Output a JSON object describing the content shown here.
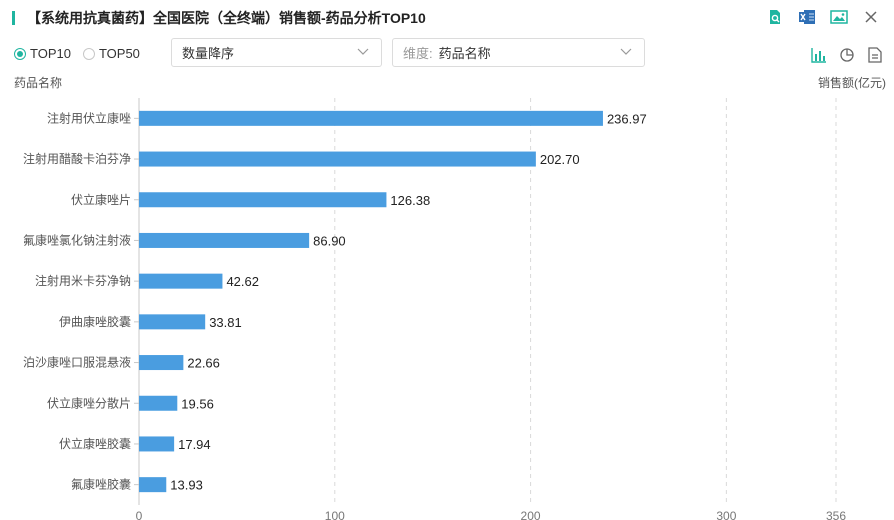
{
  "title": "【系统用抗真菌药】全国医院（全终端）销售额-药品分析TOP10",
  "toolbar": {
    "icons": [
      "search-doc-icon",
      "excel-export-icon",
      "image-export-icon",
      "close-icon"
    ]
  },
  "radios": [
    {
      "label": "TOP10",
      "selected": true
    },
    {
      "label": "TOP50",
      "selected": false
    }
  ],
  "sort_select": {
    "value": "数量降序"
  },
  "dimension_select": {
    "prefix": "维度:",
    "value": "药品名称"
  },
  "view_icons": [
    "bar-chart-icon",
    "pie-chart-icon",
    "table-icon"
  ],
  "colors": {
    "accent": "#1fb5a0",
    "bar": "#4a9de0"
  },
  "chart_data": {
    "type": "bar",
    "orientation": "horizontal",
    "categories": [
      "注射用伏立康唑",
      "注射用醋酸卡泊芬净",
      "伏立康唑片",
      "氟康唑氯化钠注射液",
      "注射用米卡芬净钠",
      "伊曲康唑胶囊",
      "泊沙康唑口服混悬液",
      "伏立康唑分散片",
      "伏立康唑胶囊",
      "氟康唑胶囊"
    ],
    "values": [
      236.97,
      202.7,
      126.38,
      86.9,
      42.62,
      33.81,
      22.66,
      19.56,
      17.94,
      13.93
    ],
    "value_labels": [
      "236.97",
      "202.70",
      "126.38",
      "86.90",
      "42.62",
      "33.81",
      "22.66",
      "19.56",
      "17.94",
      "13.93"
    ],
    "xlabel": "销售额(亿元)",
    "ylabel": "药品名称",
    "xticks": [
      0,
      100,
      200,
      300,
      356
    ],
    "xlim": [
      0,
      356
    ],
    "grid": true
  }
}
